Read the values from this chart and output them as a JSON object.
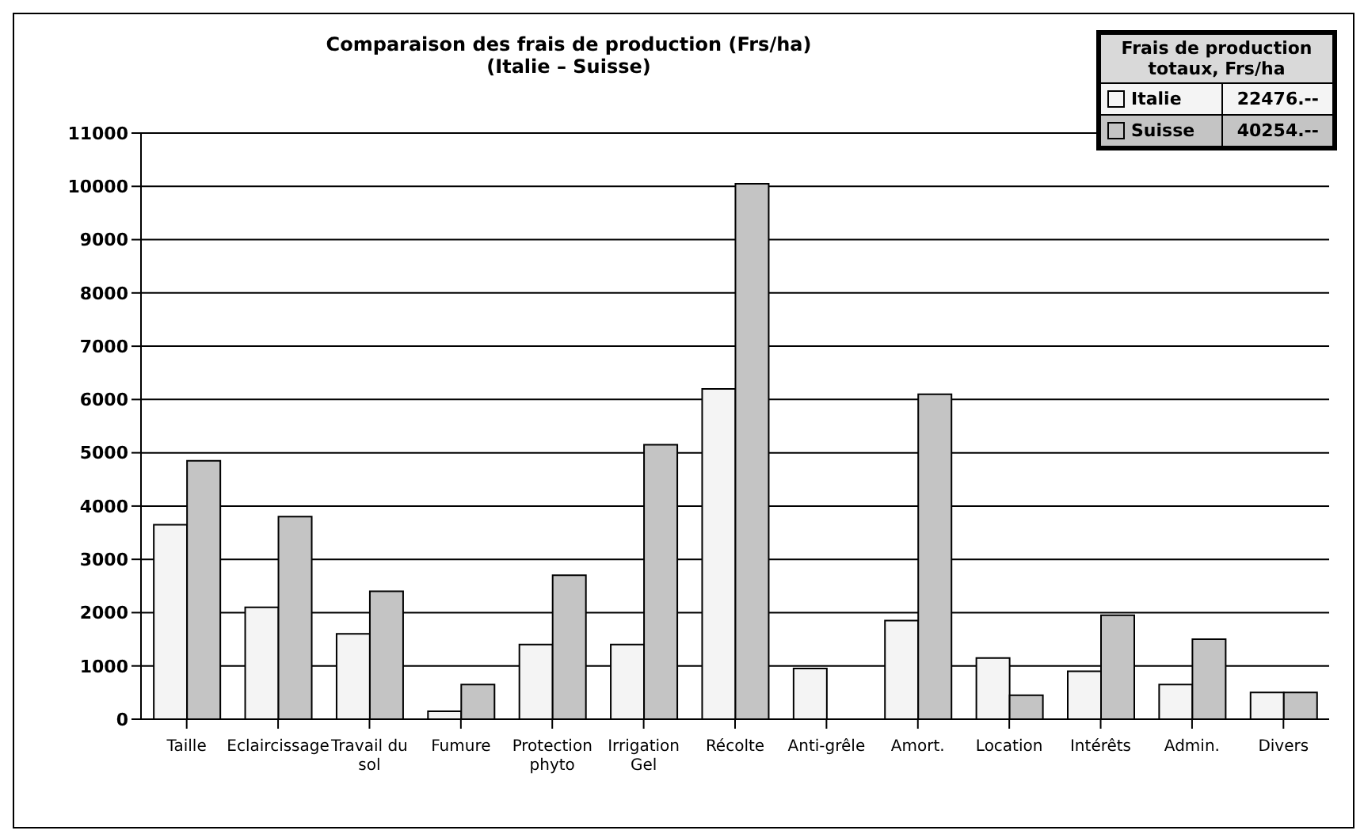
{
  "chart_data": {
    "type": "bar",
    "title": "Comparaison des frais de production  (Frs/ha)",
    "subtitle": "(Italie – Suisse)",
    "categories": [
      "Taille",
      "Eclaircissage",
      "Travail du sol",
      "Fumure",
      "Protection phyto",
      "Irrigation Gel",
      "Récolte",
      "Anti-grêle",
      "Amort.",
      "Location",
      "Intérêts",
      "Admin.",
      "Divers"
    ],
    "series": [
      {
        "name": "Italie",
        "color": "#f4f4f4",
        "values": [
          3650,
          2100,
          1600,
          150,
          1400,
          1400,
          6200,
          950,
          1850,
          1150,
          900,
          650,
          500
        ]
      },
      {
        "name": "Suisse",
        "color": "#c4c4c4",
        "values": [
          4850,
          3800,
          2400,
          650,
          2700,
          5150,
          10050,
          0,
          6100,
          450,
          1950,
          1500,
          500
        ]
      }
    ],
    "ylim": [
      0,
      11000
    ],
    "yticks": [
      0,
      1000,
      2000,
      3000,
      4000,
      5000,
      6000,
      7000,
      8000,
      9000,
      10000,
      11000
    ],
    "grid": "y",
    "legend": "top right",
    "legend_title": "Frais de production totaux, Frs/ha",
    "annotations": [
      "22476.--",
      "40254.--"
    ]
  }
}
